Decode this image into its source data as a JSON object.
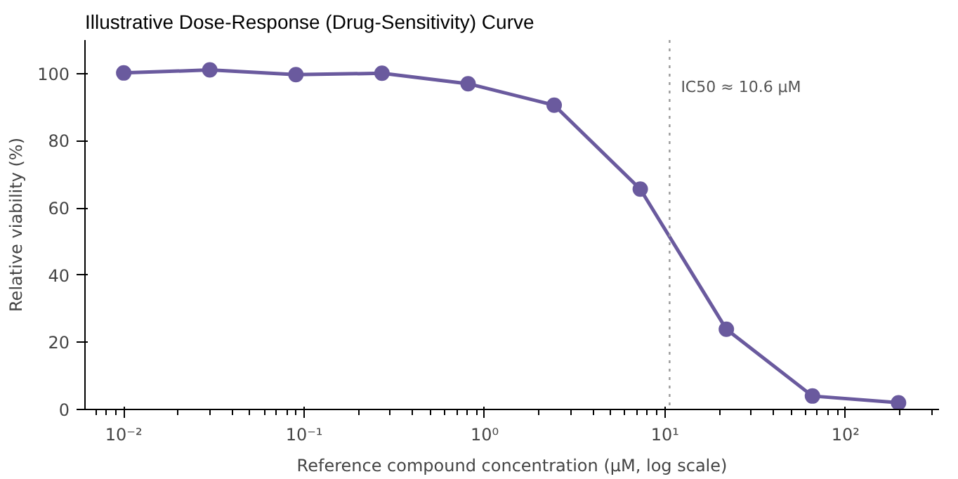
{
  "chart_data": {
    "type": "line",
    "title": "Illustrative Dose-Response (Drug-Sensitivity) Curve",
    "xlabel": "Reference compound concentration (µM, log scale)",
    "ylabel": "Relative viability (%)",
    "x": [
      0.01,
      0.03,
      0.09,
      0.27,
      0.81,
      2.43,
      7.29,
      21.87,
      65.61,
      196.83
    ],
    "series": [
      {
        "color": "#6a5a9e",
        "values": [
          100.2,
          101.1,
          99.7,
          100.1,
          97.0,
          90.6,
          65.6,
          23.9,
          4.0,
          2.0
        ]
      }
    ],
    "log": "x",
    "marker": "circle",
    "line_style": "solid",
    "xlim": [
      0.0061,
      330
    ],
    "ylim": [
      0,
      110
    ],
    "xticks": [
      {
        "value": 0.01,
        "label": "10⁻²"
      },
      {
        "value": 0.1,
        "label": "10⁻¹"
      },
      {
        "value": 1,
        "label": "10⁰"
      },
      {
        "value": 10,
        "label": "10¹"
      },
      {
        "value": 100,
        "label": "10²"
      }
    ],
    "yticks": [
      0,
      20,
      40,
      60,
      80,
      100
    ],
    "ref_lines": [
      {
        "axis": "x",
        "value": 10.6,
        "label": "IC50 ≈ 10.6 µM",
        "color": "#999999",
        "line_style": "dotted"
      }
    ]
  }
}
